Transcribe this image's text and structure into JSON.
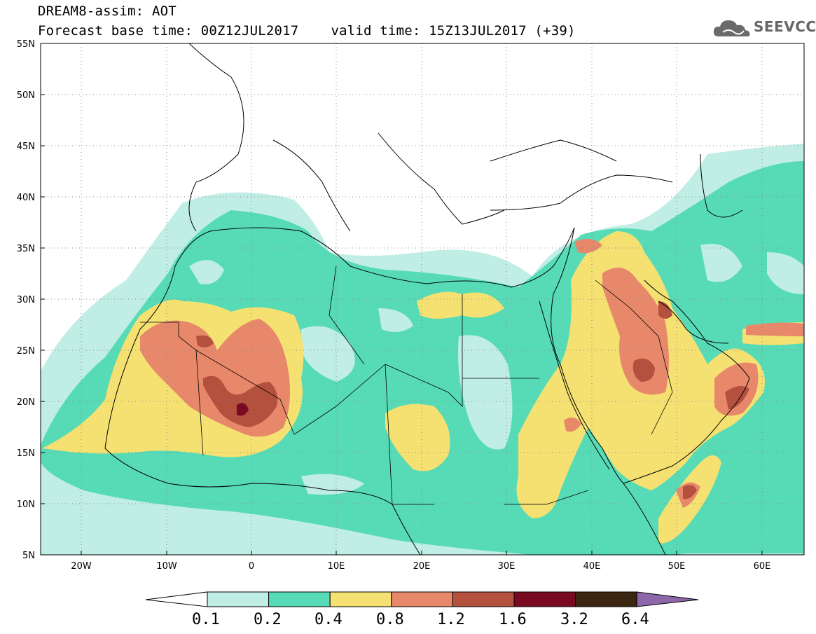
{
  "title_line1": "DREAM8-assim: AOT",
  "title_base": "Forecast base time: 00Z12JUL2017",
  "title_valid": "valid time: 15Z13JUL2017 (+39)",
  "logo_text": "SEEVCCC",
  "lat_ticks": [
    "55N",
    "50N",
    "45N",
    "40N",
    "35N",
    "30N",
    "25N",
    "20N",
    "15N",
    "10N",
    "5N"
  ],
  "lon_ticks": [
    "20W",
    "10W",
    "0",
    "10E",
    "20E",
    "30E",
    "40E",
    "50E",
    "60E"
  ],
  "colorbar": {
    "labels": [
      "0.1",
      "0.2",
      "0.4",
      "0.8",
      "1.2",
      "1.6",
      "3.2",
      "6.4"
    ],
    "colors": [
      "#ffffff",
      "#c0eee4",
      "#57dbb6",
      "#f5e172",
      "#e8886a",
      "#b4503e",
      "#7a0a22",
      "#3b2612",
      "#8e66aa"
    ]
  }
}
